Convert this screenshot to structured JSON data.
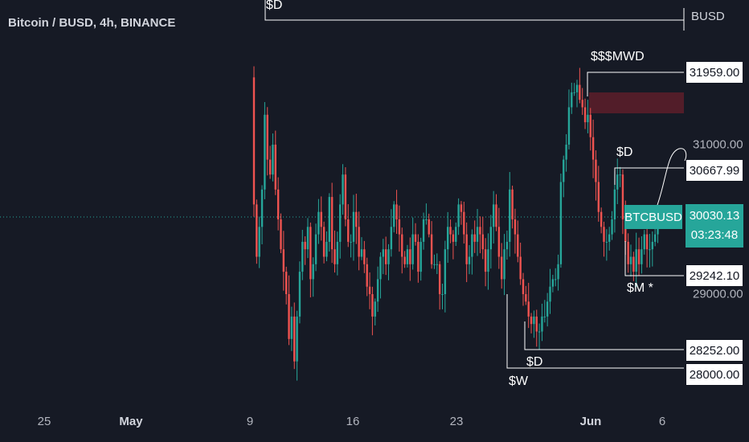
{
  "header": {
    "title": "Bitcoin / BUSD, 4h, BINANCE",
    "currency": "BUSD"
  },
  "colors": {
    "background": "#161a25",
    "up": "#26a69a",
    "down": "#ef5350",
    "annotation": "#ffffff",
    "zone": "#5d1e2a"
  },
  "last_price": {
    "ticker": "BTCBUSD",
    "price": "30030.13",
    "countdown": "03:23:48"
  },
  "chart_data": {
    "type": "candlestick",
    "title": "Bitcoin / BUSD, 4h, BINANCE",
    "y_axis_ticks": [
      "31000.00",
      "29000.00"
    ],
    "x_axis_ticks": [
      {
        "label": "25",
        "bold": false
      },
      {
        "label": "May",
        "bold": true
      },
      {
        "label": "9",
        "bold": false
      },
      {
        "label": "16",
        "bold": false
      },
      {
        "label": "23",
        "bold": false
      },
      {
        "label": "Jun",
        "bold": true
      },
      {
        "label": "6",
        "bold": false
      }
    ],
    "price_levels": [
      "31959.00",
      "30667.99",
      "29242.10",
      "28252.00",
      "28000.00"
    ],
    "annotations": [
      "$D",
      "$$$MWD",
      "$D",
      "$M *",
      "$D",
      "$W"
    ],
    "grid": false,
    "close_path": [
      30200,
      29500,
      29900,
      30400,
      31400,
      30800,
      30600,
      31000,
      30400,
      30000,
      29600,
      29300,
      29000,
      28400,
      28700,
      28100,
      28700,
      29300,
      29700,
      29600,
      29900,
      29200,
      29400,
      29800,
      30100,
      29900,
      29500,
      29700,
      30300,
      29600,
      29400,
      29700,
      30200,
      30600,
      30000,
      29700,
      29700,
      30100,
      29900,
      29500,
      29600,
      29400,
      29100,
      29000,
      28700,
      28900,
      29200,
      29500,
      29600,
      29400,
      29600,
      29900,
      30200,
      30000,
      29800,
      29500,
      29400,
      29600,
      29400,
      29800,
      29700,
      29300,
      29700,
      30000,
      30000,
      29800,
      29400,
      29400,
      29400,
      29000,
      29000,
      29600,
      29900,
      29800,
      29700,
      29900,
      30200,
      30100,
      29800,
      29400,
      29500,
      29800,
      29700,
      29900,
      29800,
      29600,
      29300,
      29600,
      29900,
      30200,
      29900,
      29500,
      29200,
      29600,
      29700,
      30400,
      30000,
      29800,
      29500,
      29200,
      29000,
      28900,
      28700,
      28600,
      28700,
      28500,
      28500,
      28700,
      28700,
      28900,
      29100,
      29200,
      29200,
      29400,
      30500,
      30800,
      31000,
      31500,
      31700,
      31700,
      31800,
      31600,
      31500,
      31300,
      31400,
      31100,
      30800,
      30500,
      30100,
      29900,
      29700,
      29700,
      29800,
      30000,
      30400,
      30600,
      30600,
      30000,
      29700,
      29400,
      29500,
      29300,
      29600,
      29400,
      29600,
      29800,
      29600,
      29600,
      29700,
      29800,
      29900
    ]
  }
}
